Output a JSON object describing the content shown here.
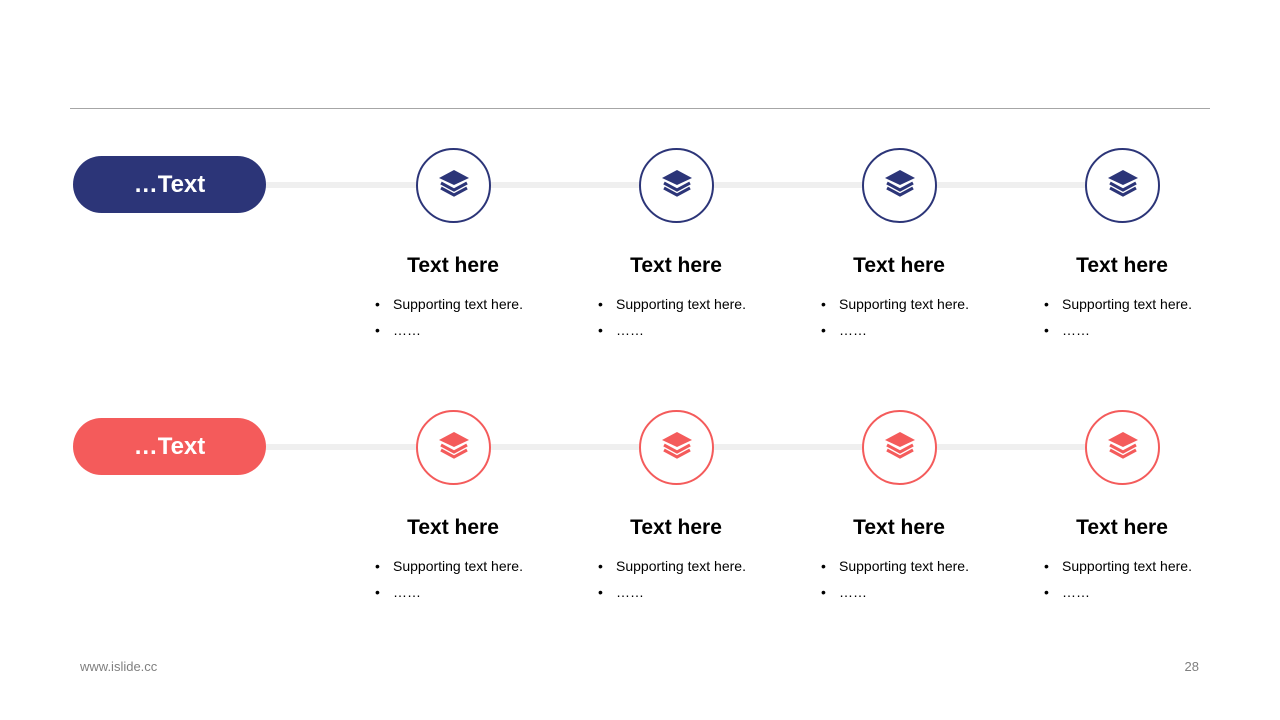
{
  "colors": {
    "row1": "#2c3578",
    "row2": "#f45b5b"
  },
  "icon": "layers-icon",
  "rows": [
    {
      "label": "…Text",
      "items": [
        {
          "title": "Text here",
          "bullets": [
            "Supporting text here.",
            "……"
          ]
        },
        {
          "title": "Text here",
          "bullets": [
            "Supporting text here.",
            "……"
          ]
        },
        {
          "title": "Text here",
          "bullets": [
            "Supporting text here.",
            "……"
          ]
        },
        {
          "title": "Text here",
          "bullets": [
            "Supporting text here.",
            "……"
          ]
        }
      ]
    },
    {
      "label": "…Text",
      "items": [
        {
          "title": "Text here",
          "bullets": [
            "Supporting text here.",
            "……"
          ]
        },
        {
          "title": "Text here",
          "bullets": [
            "Supporting text here.",
            "……"
          ]
        },
        {
          "title": "Text here",
          "bullets": [
            "Supporting text here.",
            "……"
          ]
        },
        {
          "title": "Text here",
          "bullets": [
            "Supporting text here.",
            "……"
          ]
        }
      ]
    }
  ],
  "footer": {
    "website": "www.islide.cc",
    "page": "28"
  }
}
